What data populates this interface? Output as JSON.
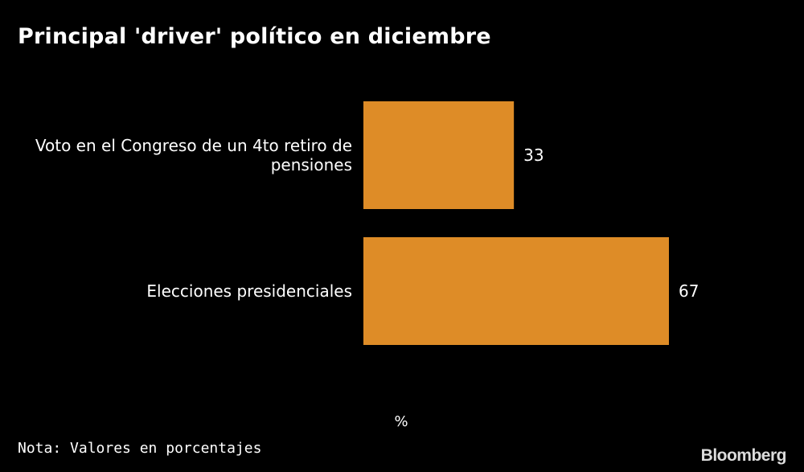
{
  "title": "Principal 'driver' político en diciembre",
  "note": "Nota: Valores en porcentajes",
  "source": "Bloomberg",
  "colors": {
    "background": "#000000",
    "bar": "#de8c27",
    "text": "#ffffff"
  },
  "chart_data": {
    "type": "bar",
    "orientation": "horizontal",
    "categories": [
      [
        "Voto en el Congreso de un 4to retiro de",
        "pensiones"
      ],
      [
        "Elecciones presidenciales"
      ]
    ],
    "values": [
      33,
      67
    ],
    "value_labels": [
      "33",
      "67"
    ],
    "unit_label": "%",
    "xlim": [
      0,
      67
    ],
    "grid": false
  }
}
